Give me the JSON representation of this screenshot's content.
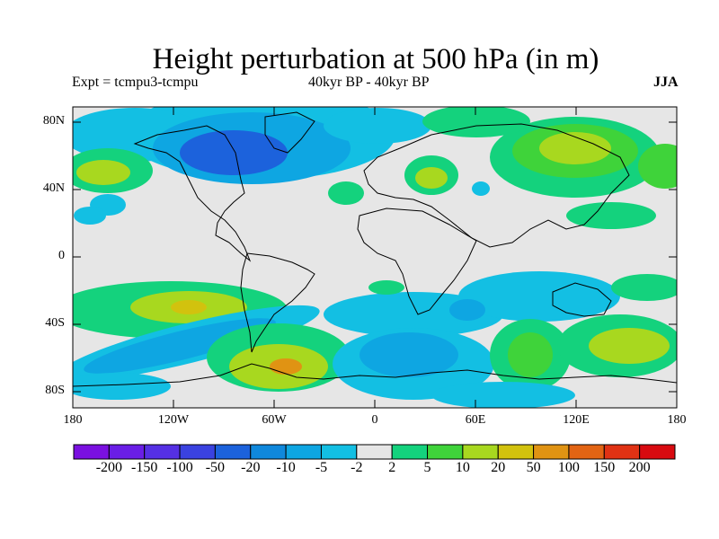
{
  "title": "Height perturbation at 500 hPa (in m)",
  "experiment": "Expt = tcmpu3-tcmpu",
  "period": "40kyr BP - 40kyr BP",
  "season": "JJA",
  "y_ticks": [
    "80N",
    "40N",
    "0",
    "40S",
    "80S"
  ],
  "x_ticks": [
    "180",
    "120W",
    "60W",
    "0",
    "60E",
    "120E",
    "180"
  ],
  "colorbar": {
    "labels": [
      "-200",
      "-150",
      "-100",
      "-50",
      "-20",
      "-10",
      "-5",
      "-2",
      "2",
      "5",
      "10",
      "20",
      "50",
      "100",
      "150",
      "200"
    ],
    "colors": [
      "#7a10e0",
      "#6a1ee6",
      "#5530e4",
      "#3a42e0",
      "#1c62dc",
      "#0f88dc",
      "#0ea6e2",
      "#13bfe3",
      "#e6e6e6",
      "#14d27d",
      "#3fd33a",
      "#a8d81f",
      "#d2c20e",
      "#e09313",
      "#e26414",
      "#e03214",
      "#d80a10"
    ]
  }
}
